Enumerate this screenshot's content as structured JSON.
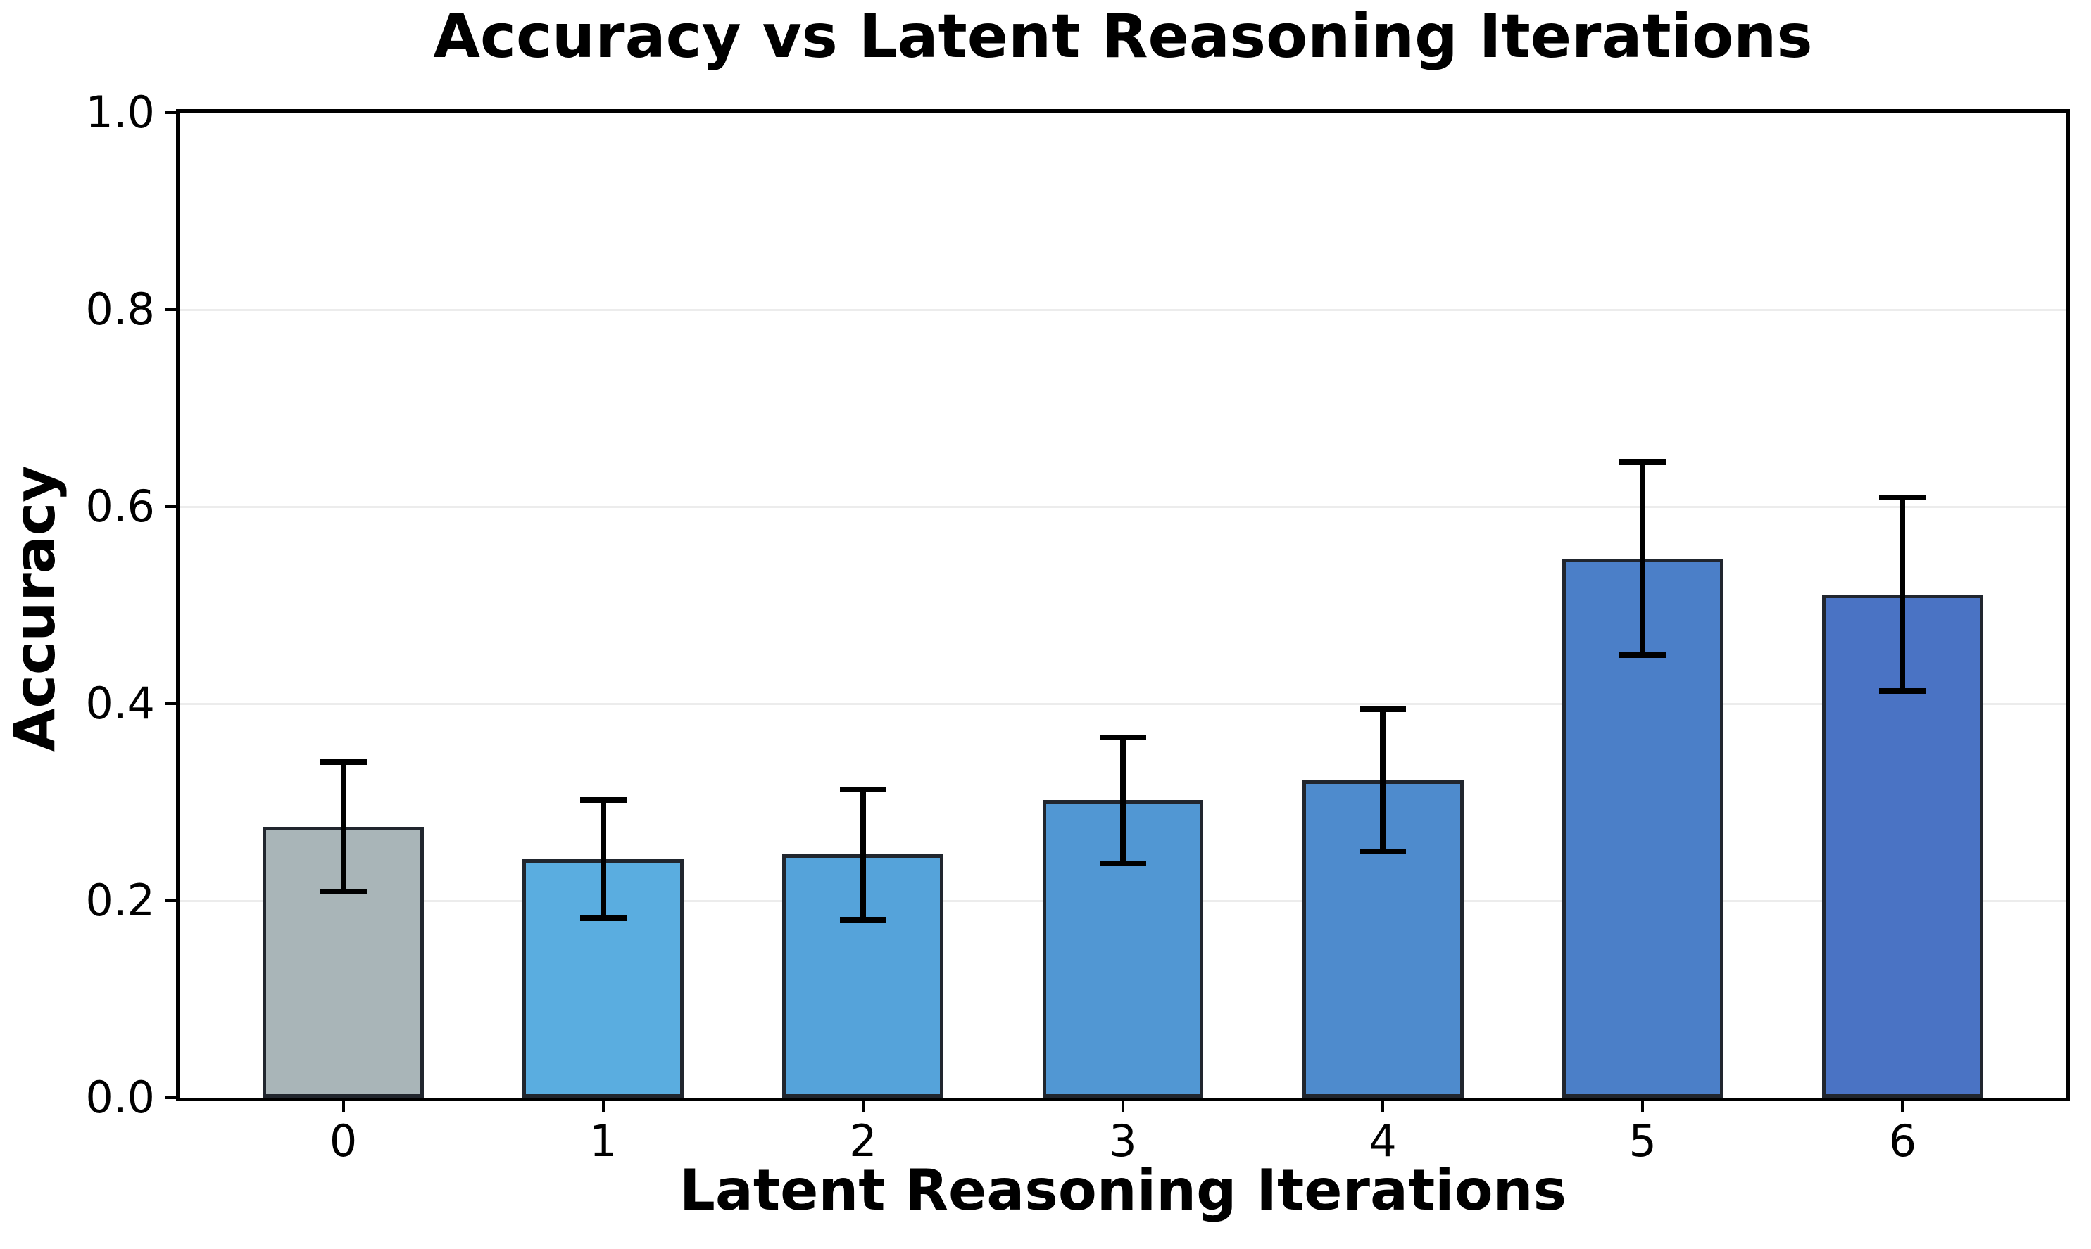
{
  "chart_data": {
    "type": "bar",
    "title": "Accuracy vs Latent Reasoning Iterations",
    "xlabel": "Latent Reasoning Iterations",
    "ylabel": "Accuracy",
    "categories": [
      "0",
      "1",
      "2",
      "3",
      "4",
      "5",
      "6"
    ],
    "values": [
      0.275,
      0.242,
      0.247,
      0.302,
      0.322,
      0.547,
      0.511
    ],
    "errors": [
      0.066,
      0.06,
      0.066,
      0.064,
      0.072,
      0.098,
      0.098
    ],
    "bar_colors": [
      "#a9b5b8",
      "#5aade0",
      "#55a3da",
      "#5197d3",
      "#4e8bcd",
      "#4b7fc8",
      "#4a73c4"
    ],
    "bar_edge_color": "#21262e",
    "error_color": "#000000",
    "grid": true,
    "grid_color": "#ececec",
    "legend": "none",
    "ylim": [
      0.0,
      1.0
    ],
    "xlim": [
      -0.63,
      6.63
    ],
    "bar_width": 0.62,
    "yticks": [
      0.0,
      0.2,
      0.4,
      0.6,
      0.8,
      1.0
    ],
    "ytick_labels": [
      "0.0",
      "0.2",
      "0.4",
      "0.6",
      "0.8",
      "1.0"
    ]
  }
}
